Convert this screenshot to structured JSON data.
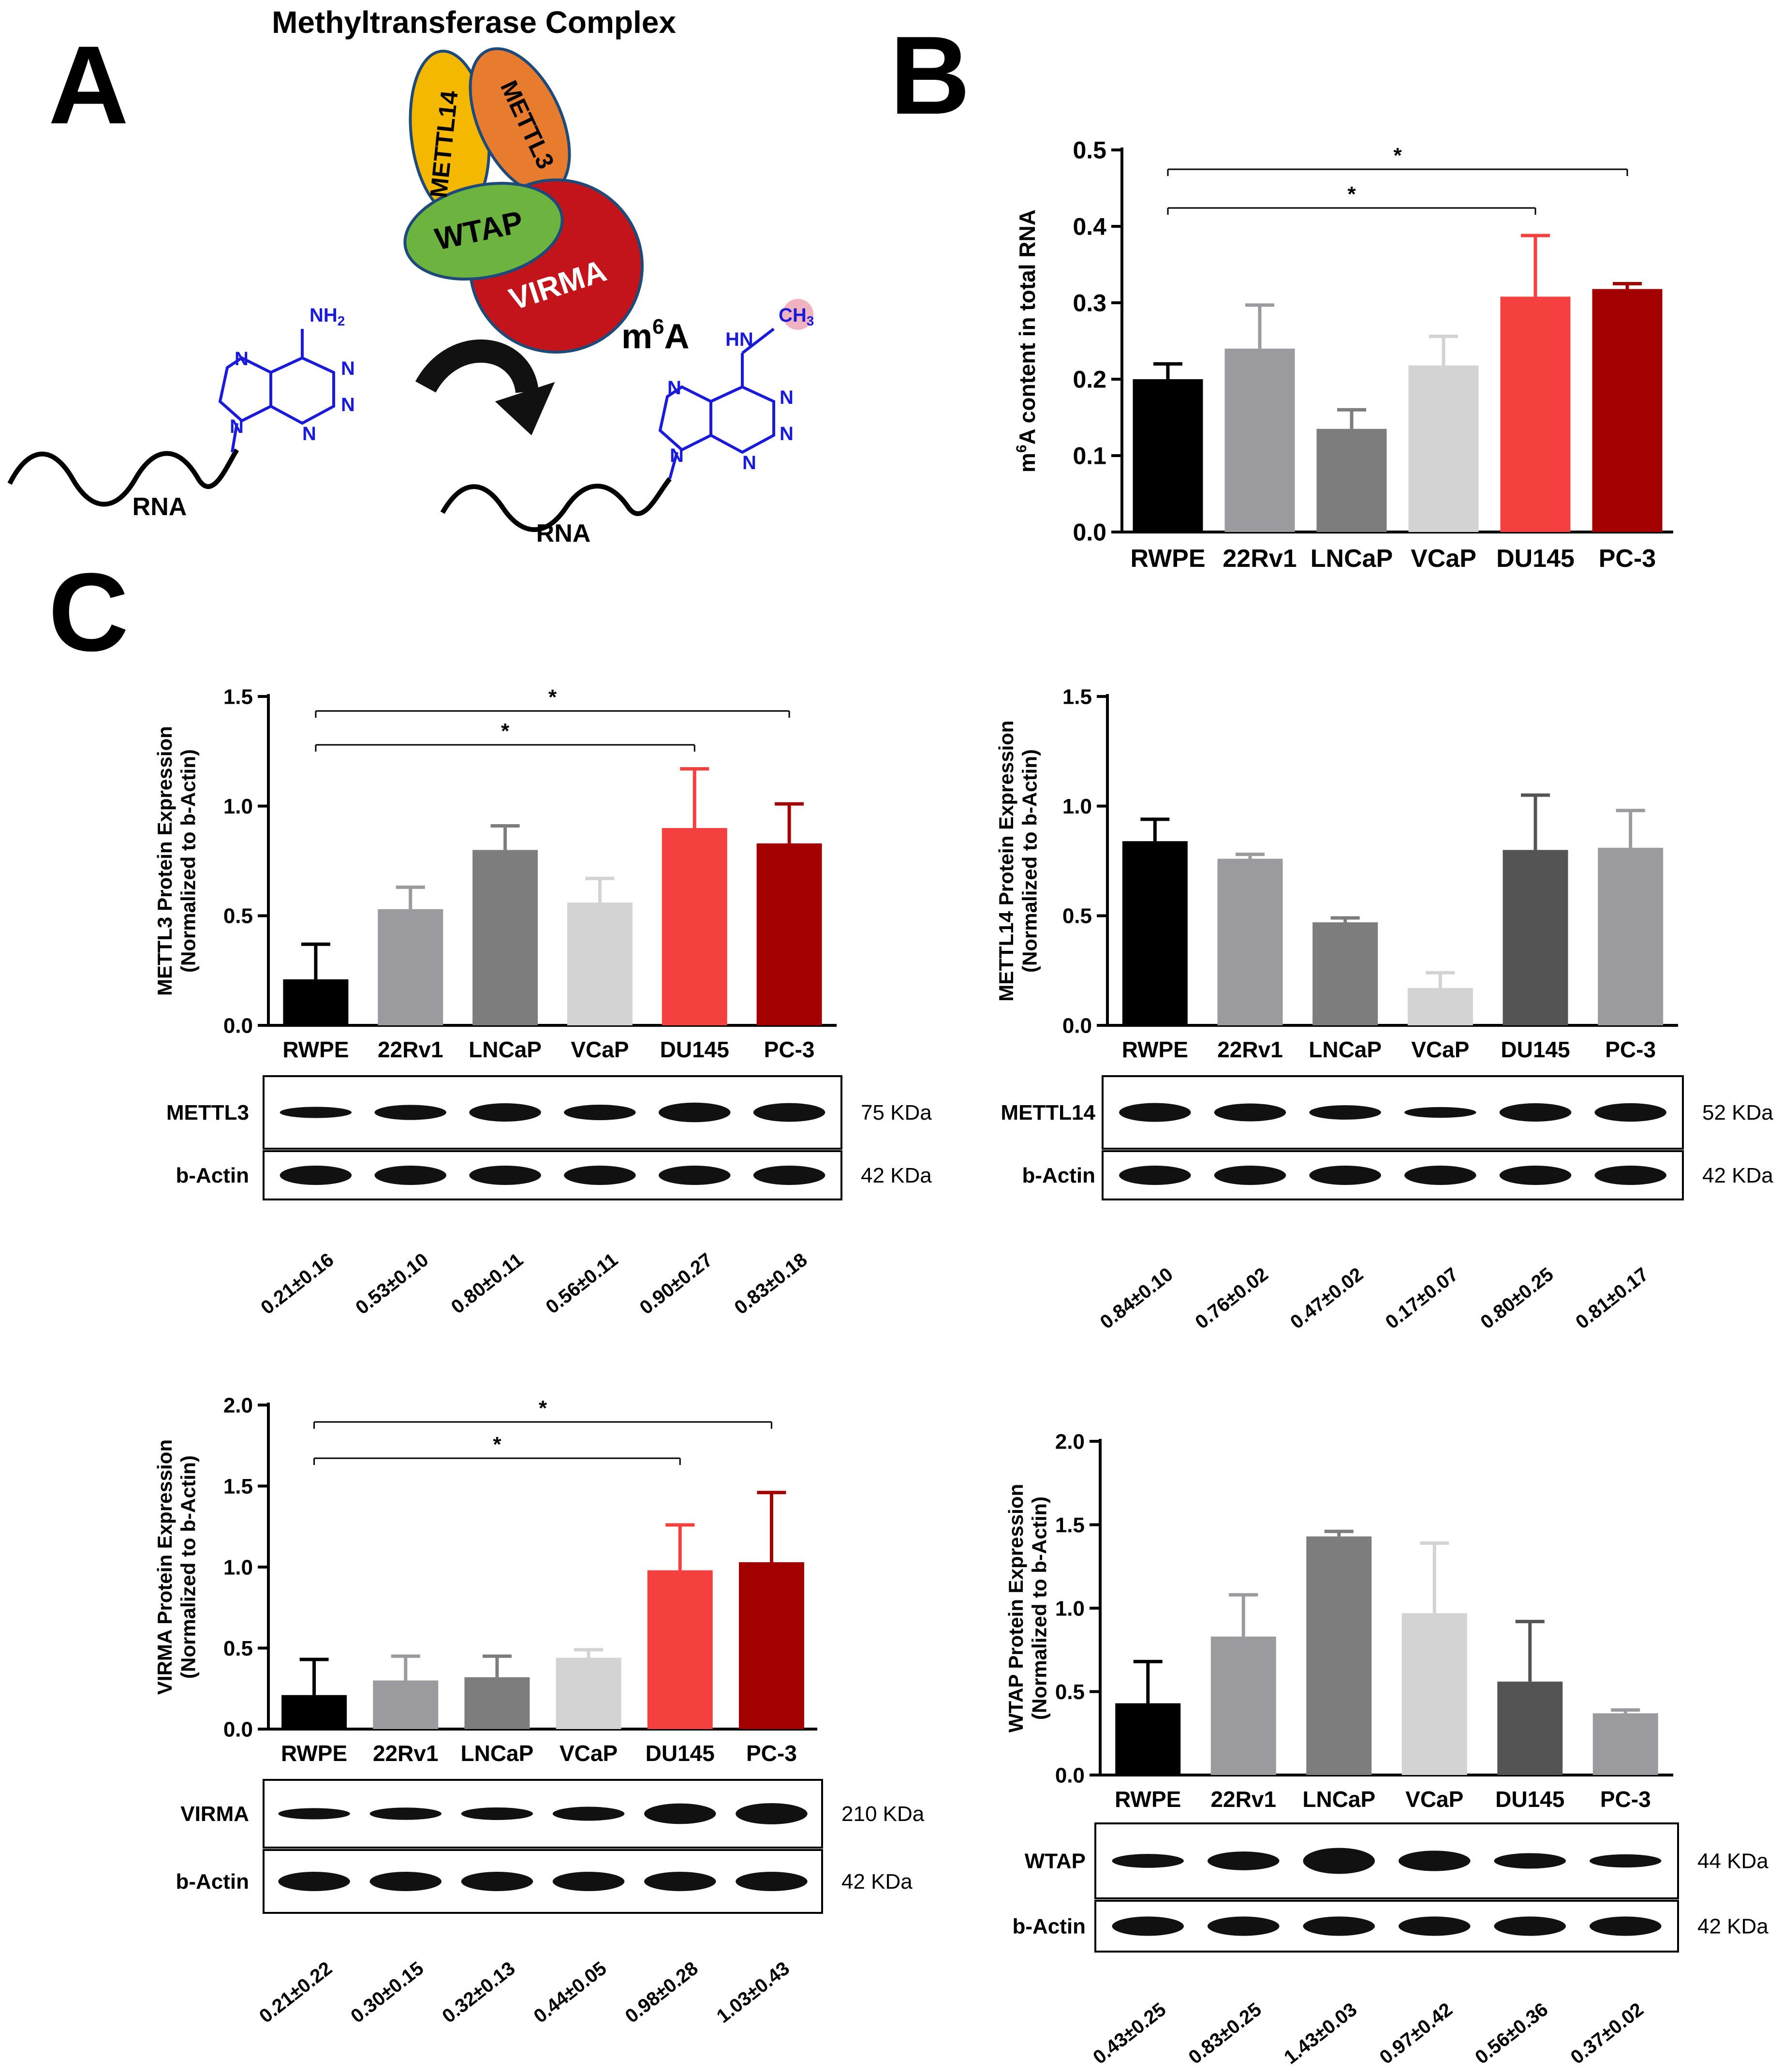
{
  "figure": {
    "panel_labels": [
      "A",
      "B",
      "C"
    ],
    "complex_title": "Methyltransferase Complex",
    "subunits": [
      "METTL14",
      "METTL3",
      "WTAP",
      "VIRMA"
    ],
    "m6a_label_base": "m",
    "m6a_label_sup": "6",
    "m6a_label_tail": "A",
    "rna_label": "RNA",
    "atoms": {
      "nh2": "NH",
      "nh2_sub": "2",
      "hn": "HN",
      "ch3": "CH",
      "ch3_sub": "3",
      "n": "N"
    },
    "colors": {
      "mettl14": "#f5b800",
      "mettl3": "#e87c2e",
      "wtap": "#6db33f",
      "virma": "#c3141b",
      "molecule": "#1a1adb",
      "arrow": "#111111"
    }
  },
  "chart_data": [
    {
      "id": "B",
      "type": "bar",
      "categories": [
        "RWPE",
        "22Rv1",
        "LNCaP",
        "VCaP",
        "DU145",
        "PC-3"
      ],
      "values": [
        0.2,
        0.24,
        0.135,
        0.218,
        0.308,
        0.318
      ],
      "errors": [
        0.02,
        0.057,
        0.025,
        0.038,
        0.08,
        0.007
      ],
      "colors": [
        "#000000",
        "#9b9b9f",
        "#7d7d7d",
        "#d3d3d3",
        "#f4403e",
        "#a30000"
      ],
      "ylabel_parts": [
        "m",
        "6",
        "A content in total RNA"
      ],
      "ylim": [
        0,
        0.5
      ],
      "yticks": [
        "0.0",
        "0.1",
        "0.2",
        "0.3",
        "0.4",
        "0.5"
      ],
      "significance": [
        {
          "from": "RWPE",
          "to": "DU145",
          "label": "*"
        },
        {
          "from": "RWPE",
          "to": "PC-3",
          "label": "*"
        }
      ]
    },
    {
      "id": "C-METTL3",
      "type": "bar",
      "categories": [
        "RWPE",
        "22Rv1",
        "LNCaP",
        "VCaP",
        "DU145",
        "PC-3"
      ],
      "values": [
        0.21,
        0.53,
        0.8,
        0.56,
        0.9,
        0.83
      ],
      "errors": [
        0.16,
        0.1,
        0.11,
        0.11,
        0.27,
        0.18
      ],
      "colors": [
        "#000000",
        "#9b9b9f",
        "#7d7d7d",
        "#d3d3d3",
        "#f4403e",
        "#a30000"
      ],
      "ylabel": [
        "METTL3 Protein Expression",
        "(Normalized to b-Actin)"
      ],
      "ylim": [
        0,
        1.5
      ],
      "yticks": [
        "0.0",
        "0.5",
        "1.0",
        "1.5"
      ],
      "significance": [
        {
          "from": "RWPE",
          "to": "DU145",
          "label": "*"
        },
        {
          "from": "RWPE",
          "to": "PC-3",
          "label": "*"
        }
      ],
      "blot": {
        "protein": "METTL3",
        "protein_kda": "75 KDa",
        "control": "b-Actin",
        "control_kda": "42 KDa"
      },
      "quant_labels": [
        "0.21±0.16",
        "0.53±0.10",
        "0.80±0.11",
        "0.56±0.11",
        "0.90±0.27",
        "0.83±0.18"
      ]
    },
    {
      "id": "C-METTL14",
      "type": "bar",
      "categories": [
        "RWPE",
        "22Rv1",
        "LNCaP",
        "VCaP",
        "DU145",
        "PC-3"
      ],
      "values": [
        0.84,
        0.76,
        0.47,
        0.17,
        0.8,
        0.81
      ],
      "errors": [
        0.1,
        0.02,
        0.02,
        0.07,
        0.25,
        0.17
      ],
      "colors": [
        "#000000",
        "#9b9b9f",
        "#7d7d7d",
        "#d3d3d3",
        "#545454",
        "#9b9b9f"
      ],
      "ylabel": [
        "METTL14 Protein Expression",
        "(Normalized to b-Actin)"
      ],
      "ylim": [
        0,
        1.5
      ],
      "yticks": [
        "0.0",
        "0.5",
        "1.0",
        "1.5"
      ],
      "significance": [],
      "blot": {
        "protein": "METTL14",
        "protein_kda": "52 KDa",
        "control": "b-Actin",
        "control_kda": "42 KDa"
      },
      "quant_labels": [
        "0.84±0.10",
        "0.76±0.02",
        "0.47±0.02",
        "0.17±0.07",
        "0.80±0.25",
        "0.81±0.17"
      ]
    },
    {
      "id": "C-VIRMA",
      "type": "bar",
      "categories": [
        "RWPE",
        "22Rv1",
        "LNCaP",
        "VCaP",
        "DU145",
        "PC-3"
      ],
      "values": [
        0.21,
        0.3,
        0.32,
        0.44,
        0.98,
        1.03
      ],
      "errors": [
        0.22,
        0.15,
        0.13,
        0.05,
        0.28,
        0.43
      ],
      "colors": [
        "#000000",
        "#9b9b9f",
        "#7d7d7d",
        "#d3d3d3",
        "#f4403e",
        "#a30000"
      ],
      "ylabel": [
        "VIRMA Protein Expression",
        "(Normalized to b-Actin)"
      ],
      "ylim": [
        0,
        2.0
      ],
      "yticks": [
        "0.0",
        "0.5",
        "1.0",
        "1.5",
        "2.0"
      ],
      "significance": [
        {
          "from": "RWPE",
          "to": "DU145",
          "label": "*"
        },
        {
          "from": "RWPE",
          "to": "PC-3",
          "label": "*"
        }
      ],
      "blot": {
        "protein": "VIRMA",
        "protein_kda": "210 KDa",
        "control": "b-Actin",
        "control_kda": "42 KDa"
      },
      "quant_labels": [
        "0.21±0.22",
        "0.30±0.15",
        "0.32±0.13",
        "0.44±0.05",
        "0.98±0.28",
        "1.03±0.43"
      ]
    },
    {
      "id": "C-WTAP",
      "type": "bar",
      "categories": [
        "RWPE",
        "22Rv1",
        "LNCaP",
        "VCaP",
        "DU145",
        "PC-3"
      ],
      "values": [
        0.43,
        0.83,
        1.43,
        0.97,
        0.56,
        0.37
      ],
      "errors": [
        0.25,
        0.25,
        0.03,
        0.42,
        0.36,
        0.02
      ],
      "colors": [
        "#000000",
        "#9b9b9f",
        "#7d7d7d",
        "#d3d3d3",
        "#545454",
        "#9b9b9f"
      ],
      "ylabel": [
        "WTAP Protein Expression",
        "(Normalized to b-Actin)"
      ],
      "ylim": [
        0,
        2.0
      ],
      "yticks": [
        "0.0",
        "0.5",
        "1.0",
        "1.5",
        "2.0"
      ],
      "significance": [],
      "blot": {
        "protein": "WTAP",
        "protein_kda": "44 KDa",
        "control": "b-Actin",
        "control_kda": "42 KDa"
      },
      "quant_labels": [
        "0.43±0.25",
        "0.83±0.25",
        "1.43±0.03",
        "0.97±0.42",
        "0.56±0.36",
        "0.37±0.02"
      ]
    }
  ]
}
